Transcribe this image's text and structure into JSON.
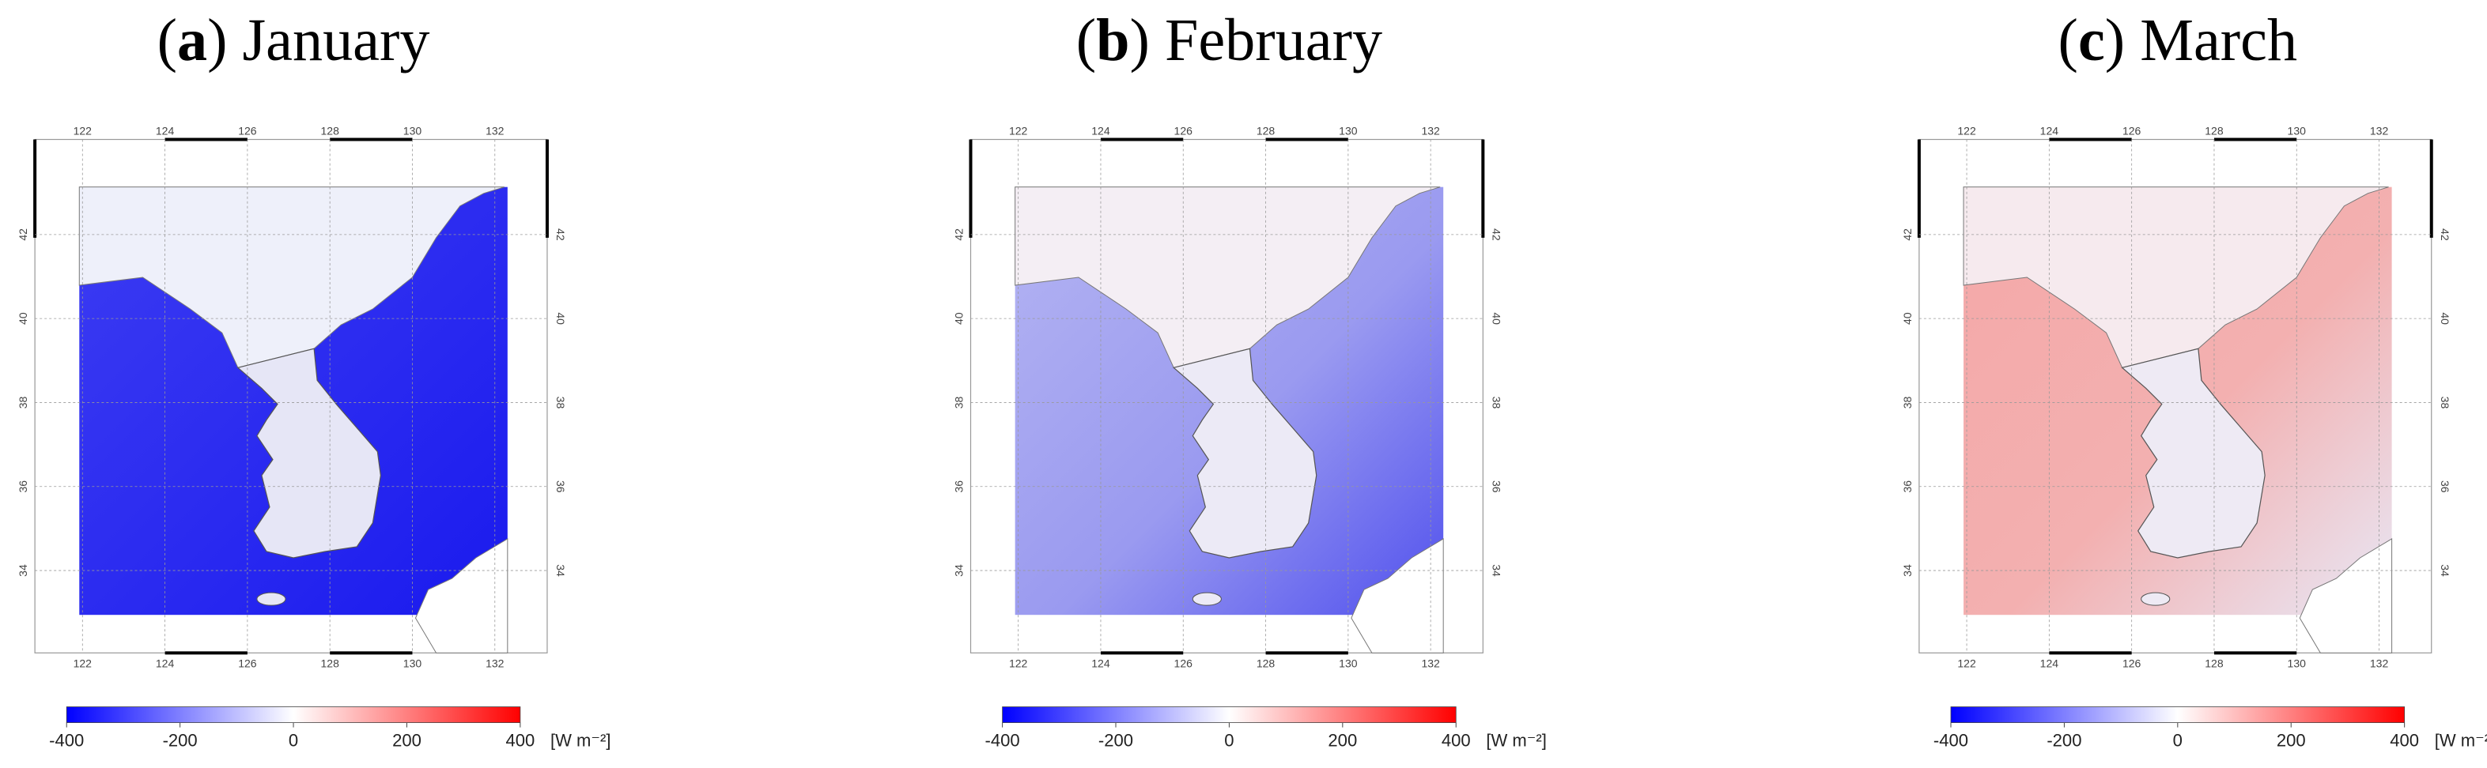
{
  "panels": [
    {
      "title_parts": [
        "(",
        "a",
        ") January"
      ]
    },
    {
      "title_parts": [
        "(",
        "b",
        ") February"
      ]
    },
    {
      "title_parts": [
        "(",
        "c",
        ") March"
      ]
    }
  ],
  "lon_ticks": [
    122,
    124,
    126,
    128,
    130,
    132
  ],
  "lat_ticks": [
    34,
    36,
    38,
    40,
    42
  ],
  "colorbar": {
    "lim": [
      -400,
      400
    ],
    "ticks": [
      -400,
      -200,
      0,
      200,
      400
    ],
    "unit": "[W m⁻²]"
  }
}
